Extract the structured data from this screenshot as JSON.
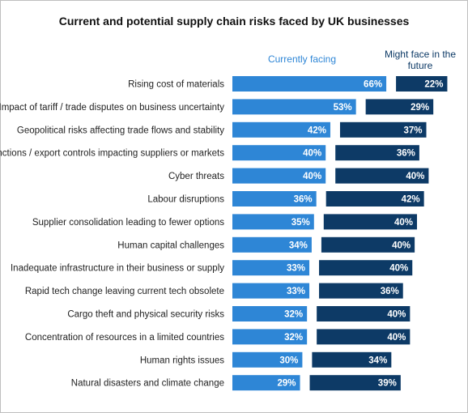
{
  "chart_data": {
    "type": "bar",
    "title": "Current and potential supply chain risks faced by UK businesses",
    "value_suffix": "%",
    "categories": [
      "Rising cost of materials",
      "Impact of tariff / trade disputes on business uncertainty",
      "Geopolitical risks affecting trade flows and stability",
      "Sanctions / export controls impacting suppliers or markets",
      "Cyber threats",
      "Labour disruptions",
      "Supplier consolidation leading to fewer options",
      "Human capital challenges",
      "Inadequate infrastructure in their business or supply",
      "Rapid tech change leaving current tech obsolete",
      "Cargo theft and physical security risks",
      "Concentration of resources in a limited countries",
      "Human rights issues",
      "Natural disasters and climate change"
    ],
    "series": [
      {
        "name": "Currently facing",
        "color": "#2e86d6",
        "values": [
          66,
          53,
          42,
          40,
          40,
          36,
          35,
          34,
          33,
          33,
          32,
          32,
          30,
          29
        ]
      },
      {
        "name": "Might face in the future",
        "color": "#0d3a66",
        "values": [
          22,
          29,
          37,
          36,
          40,
          42,
          40,
          40,
          40,
          36,
          40,
          40,
          34,
          39
        ]
      }
    ],
    "legend": "top"
  }
}
